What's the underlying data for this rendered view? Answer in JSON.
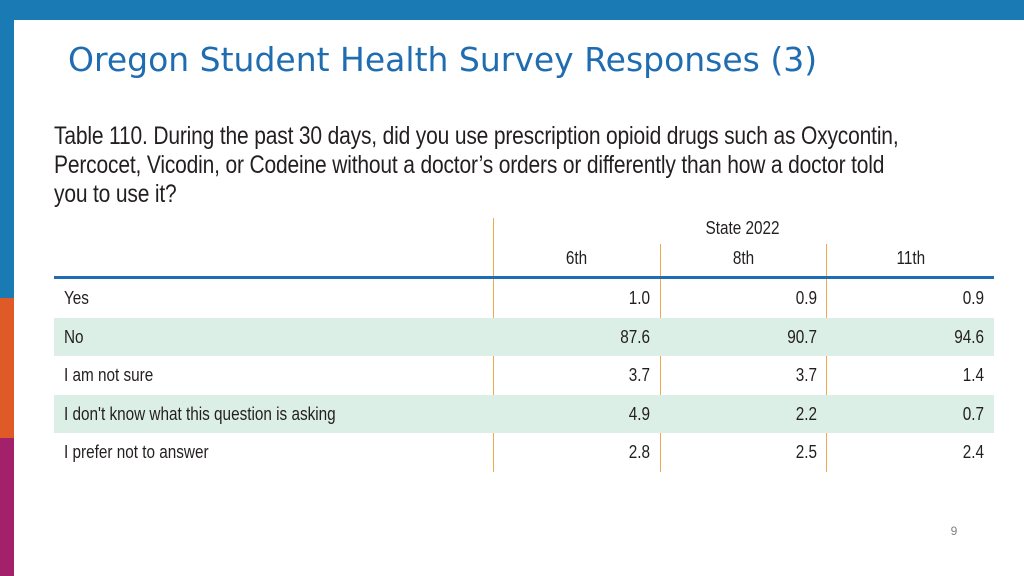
{
  "slide": {
    "title": "Oregon Student Health Survey Responses (3)",
    "page_number": "9",
    "colors": {
      "top_bar": "#1a7ab3",
      "title": "#1f6db0",
      "stripe": [
        "#1a7ab3",
        "#1e8a4e",
        "#1a7ab3",
        "#e05a28",
        "#a3206b"
      ]
    }
  },
  "table": {
    "caption_lines": [
      "Table 110. During the past 30 days, did you use prescription opioid drugs such as Oxycontin,",
      "Percocet, Vicodin, or Codeine without a doctor’s orders or differently than how a doctor told",
      "you to use it?"
    ],
    "group_header": "State 2022",
    "columns": [
      "6th",
      "8th",
      "11th"
    ],
    "rows": [
      {
        "label": "Yes",
        "values": [
          "1.0",
          "0.9",
          "0.9"
        ]
      },
      {
        "label": "No",
        "values": [
          "87.6",
          "90.7",
          "94.6"
        ]
      },
      {
        "label": "I am not sure",
        "values": [
          "3.7",
          "3.7",
          "1.4"
        ]
      },
      {
        "label": "I don't know what this question is asking",
        "values": [
          "4.9",
          "2.2",
          "0.7"
        ]
      },
      {
        "label": "I prefer not to answer",
        "values": [
          "2.8",
          "2.5",
          "2.4"
        ]
      }
    ]
  }
}
